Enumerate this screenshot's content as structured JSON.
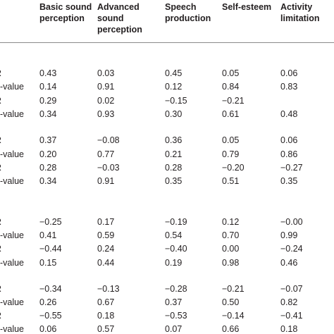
{
  "table": {
    "headers": [
      "Basic sound\nperception",
      "Advanced\nsound\nperception",
      "Speech\nproduction",
      "Self-esteem",
      "Activity\nlimitation"
    ],
    "rows": [
      {
        "label": "R",
        "values": [
          "0.43",
          "0.03",
          "0.45",
          "0.05",
          "0.06"
        ]
      },
      {
        "label": "p-value",
        "values": [
          "0.14",
          "0.91",
          "0.12",
          "0.84",
          "0.83"
        ]
      },
      {
        "label": "R",
        "values": [
          "0.29",
          "0.02",
          "−0.15",
          "−0.21",
          ""
        ]
      },
      {
        "label": "p-value",
        "values": [
          "0.34",
          "0.93",
          "0.30",
          "0.61",
          "0.48"
        ]
      },
      {
        "label": "R",
        "values": [
          "0.37",
          "−0.08",
          "0.36",
          "0.05",
          "0.06"
        ]
      },
      {
        "label": "p-value",
        "values": [
          "0.20",
          "0.77",
          "0.21",
          "0.79",
          "0.86"
        ]
      },
      {
        "label": "R",
        "values": [
          "0.28",
          "−0.03",
          "0.28",
          "−0.20",
          "−0.27"
        ]
      },
      {
        "label": "p-value",
        "values": [
          "0.34",
          "0.91",
          "0.35",
          "0.51",
          "0.35"
        ]
      },
      {
        "label": "R",
        "values": [
          "−0.25",
          "0.17",
          "−0.19",
          "0.12",
          "−0.00"
        ]
      },
      {
        "label": "p-value",
        "values": [
          "0.41",
          "0.59",
          "0.54",
          "0.70",
          "0.99"
        ]
      },
      {
        "label": "R",
        "values": [
          "−0.44",
          "0.24",
          "−0.40",
          "0.00",
          "−0.24"
        ]
      },
      {
        "label": "p-value",
        "values": [
          "0.15",
          "0.44",
          "0.19",
          "0.98",
          "0.46"
        ]
      },
      {
        "label": "R",
        "values": [
          "−0.34",
          "−0.13",
          "−0.28",
          "−0.21",
          "−0.07"
        ]
      },
      {
        "label": "p-value",
        "values": [
          "0.26",
          "0.67",
          "0.37",
          "0.50",
          "0.82"
        ]
      },
      {
        "label": "R",
        "values": [
          "−0.55",
          "0.18",
          "−0.53",
          "−0.14",
          "−0.41"
        ]
      },
      {
        "label": "p-value",
        "values": [
          "0.06",
          "0.57",
          "0.07",
          "0.66",
          "0.18"
        ]
      }
    ]
  }
}
